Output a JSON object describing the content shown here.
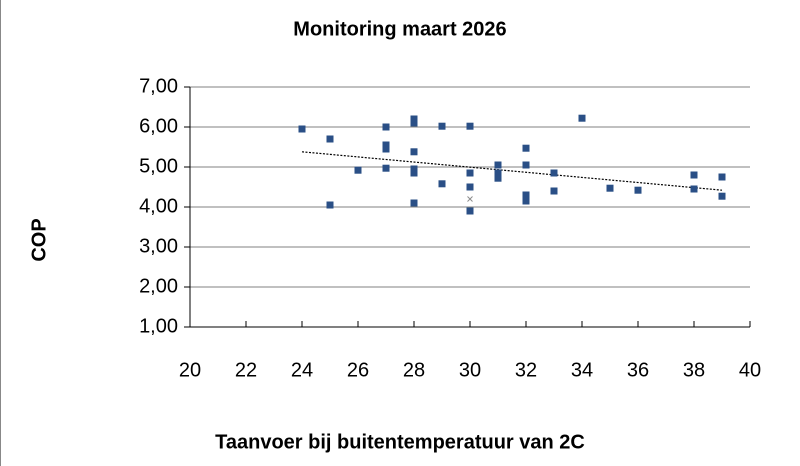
{
  "chart_data": {
    "type": "scatter",
    "title": "Monitoring maart 2026",
    "x_label": "Taanvoer bij buitentemperatuur van 2C",
    "y_label": "COP",
    "series": [
      {
        "color": "#2a4f86",
        "marker": "square",
        "x": [
          24,
          25,
          25,
          26,
          27,
          27,
          27,
          27,
          28,
          28,
          28,
          28,
          28,
          28,
          29,
          29,
          30,
          30,
          30,
          30,
          31,
          31,
          31,
          32,
          32,
          32,
          32,
          33,
          33,
          34,
          35,
          36,
          38,
          38,
          39,
          39
        ],
        "values": [
          5.95,
          5.7,
          4.05,
          4.92,
          6.0,
          5.55,
          5.45,
          4.97,
          6.2,
          6.1,
          5.38,
          4.95,
          4.85,
          4.1,
          6.02,
          4.58,
          6.02,
          4.85,
          4.5,
          3.9,
          5.05,
          4.85,
          4.72,
          5.47,
          5.05,
          4.3,
          4.15,
          4.85,
          4.4,
          6.22,
          4.47,
          4.42,
          4.8,
          4.45,
          4.75,
          4.27
        ]
      },
      {
        "color": "#8c8c8c",
        "marker": "cross",
        "x": [
          30
        ],
        "values": [
          4.2
        ]
      }
    ],
    "trendline": {
      "color": "#000000",
      "x": [
        24,
        39
      ],
      "values": [
        5.38,
        4.42
      ]
    },
    "xlim": [
      20,
      40
    ],
    "xticks": [
      20,
      22,
      24,
      26,
      28,
      30,
      32,
      34,
      36,
      38,
      40
    ],
    "ylim": [
      1,
      7
    ],
    "yticks": [
      {
        "value": 1,
        "label": "1,00"
      },
      {
        "value": 2,
        "label": "2,00"
      },
      {
        "value": 3,
        "label": "3,00"
      },
      {
        "value": 4,
        "label": "4,00"
      },
      {
        "value": 5,
        "label": "5,00"
      },
      {
        "value": 6,
        "label": "6,00"
      },
      {
        "value": 7,
        "label": "7,00"
      }
    ],
    "grid": true
  }
}
